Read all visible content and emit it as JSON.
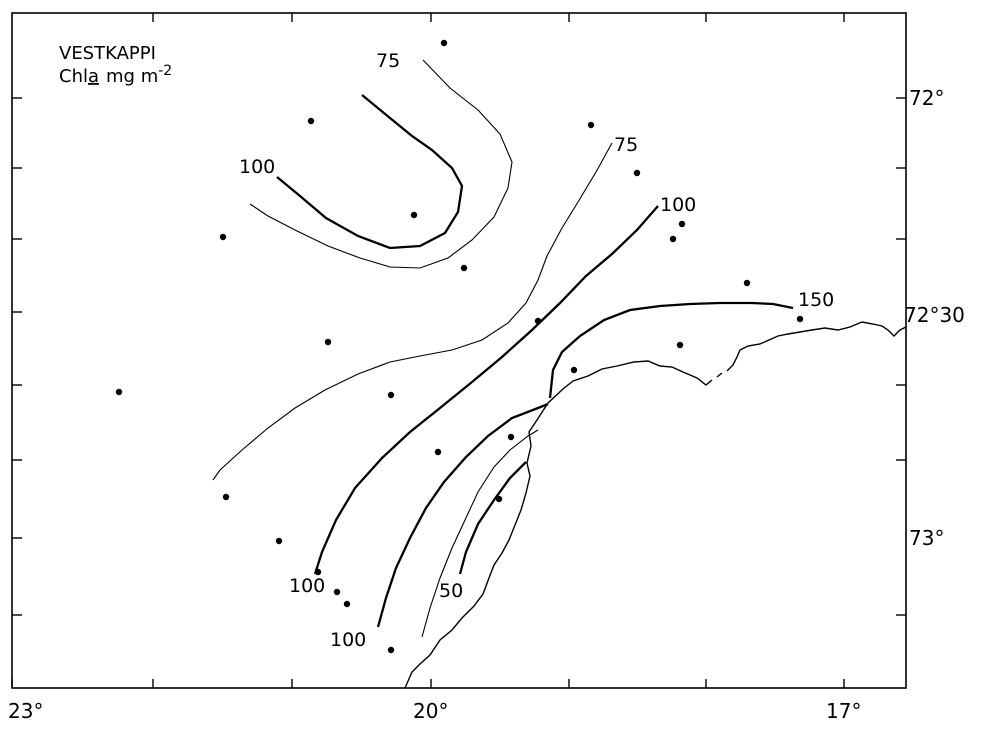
{
  "map": {
    "title": "VESTKAPPI",
    "subtitle_prefix": "Chl",
    "subtitle_a": "a",
    "subtitle_unit": "mg m",
    "subtitle_exp": "-2"
  },
  "axes": {
    "x_ticks": [
      {
        "label": "23°"
      },
      {
        "label": "20°"
      },
      {
        "label": "17°"
      }
    ],
    "y_ticks": [
      {
        "label": "72°"
      },
      {
        "label": "72°30"
      },
      {
        "label": "73°"
      }
    ]
  },
  "contours": [
    {
      "label": "75"
    },
    {
      "label": "100"
    },
    {
      "label": "75"
    },
    {
      "label": "100"
    },
    {
      "label": "150"
    },
    {
      "label": "100"
    },
    {
      "label": "100"
    },
    {
      "label": "50"
    }
  ],
  "station_count": 26
}
